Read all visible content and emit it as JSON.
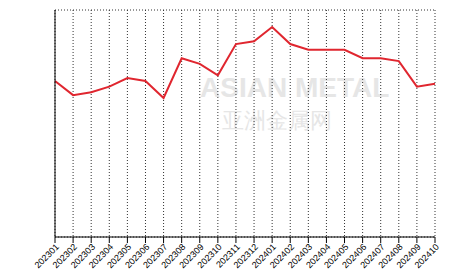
{
  "chart_data": {
    "type": "line",
    "categories": [
      "202301",
      "202302",
      "202303",
      "202304",
      "202305",
      "202306",
      "202307",
      "202308",
      "202309",
      "202310",
      "202311",
      "202312",
      "202401",
      "202402",
      "202403",
      "202404",
      "202405",
      "202406",
      "202407",
      "202408",
      "202409",
      "202410"
    ],
    "values": [
      5.5,
      5.0,
      5.1,
      5.3,
      5.6,
      5.5,
      4.9,
      6.3,
      6.1,
      5.7,
      6.8,
      6.9,
      7.4,
      6.8,
      6.6,
      6.6,
      6.6,
      6.3,
      6.3,
      6.2,
      5.3,
      5.4
    ],
    "color": "#e0262f",
    "ylim": [
      0,
      8
    ],
    "yticks": [
      0,
      1,
      2,
      3,
      4,
      5,
      6,
      7,
      8
    ],
    "grid": true,
    "tick_labels": "x",
    "annotations": [
      "ASIAN METAL",
      "亚洲金属网"
    ]
  }
}
